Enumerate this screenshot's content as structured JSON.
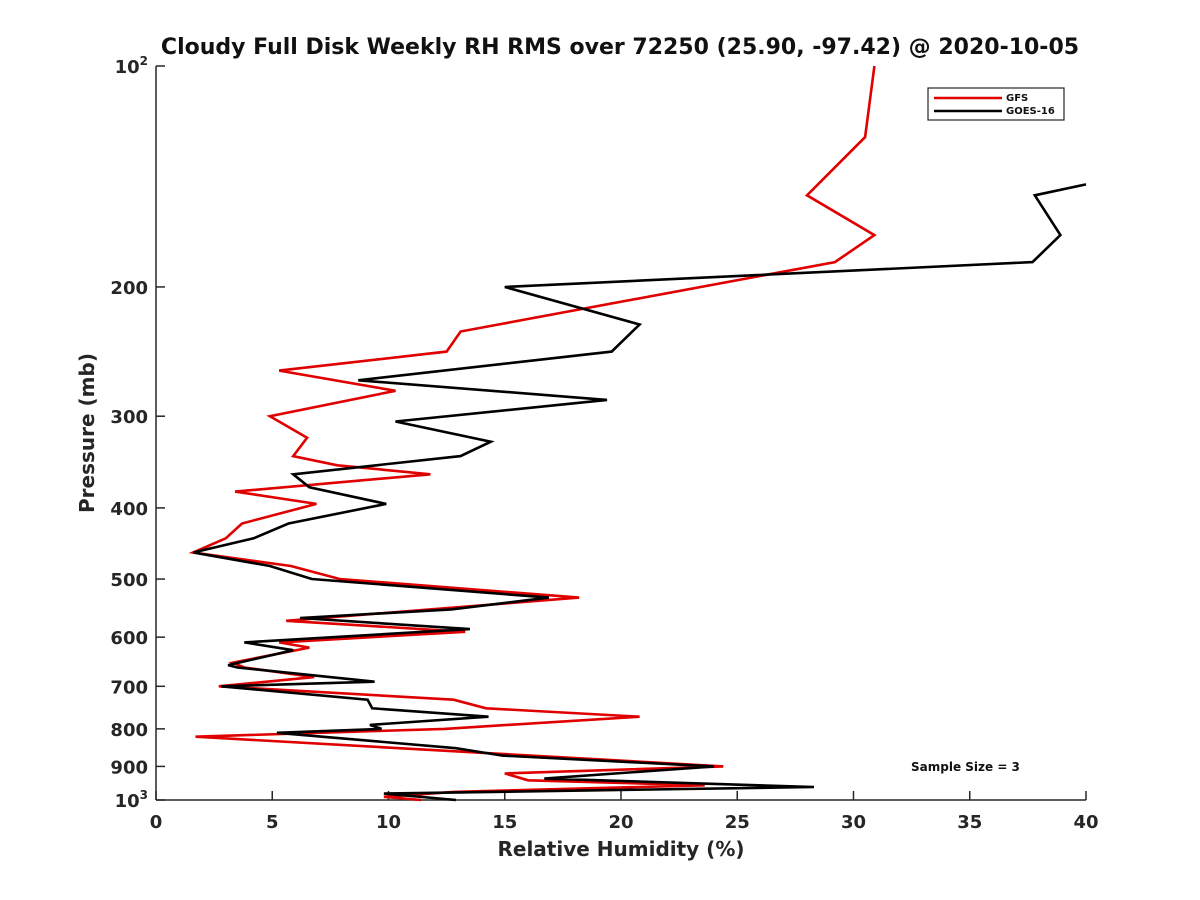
{
  "chart_data": {
    "type": "line",
    "title": "Cloudy Full Disk Weekly RH RMS over 72250 (25.90, -97.42) @ 2020-10-05",
    "xlabel": "Relative Humidity (%)",
    "ylabel": "Pressure (mb)",
    "xlim": [
      0,
      40
    ],
    "ylim": [
      1000,
      100
    ],
    "yscale": "log",
    "y_reversed": true,
    "grid": false,
    "legend_position": "top-right",
    "x_ticks": [
      "0",
      "5",
      "10",
      "15",
      "20",
      "25",
      "30",
      "35",
      "40"
    ],
    "y_ticks": [
      {
        "value": 100,
        "base": "10",
        "exp": "2"
      },
      {
        "value": 200,
        "label": "200"
      },
      {
        "value": 300,
        "label": "300"
      },
      {
        "value": 400,
        "label": "400"
      },
      {
        "value": 500,
        "label": "500"
      },
      {
        "value": 600,
        "label": "600"
      },
      {
        "value": 700,
        "label": "700"
      },
      {
        "value": 800,
        "label": "800"
      },
      {
        "value": 900,
        "label": "900"
      },
      {
        "value": 1000,
        "base": "10",
        "exp": "3"
      }
    ],
    "annotation": "Sample Size = 3",
    "series": [
      {
        "name": "GFS",
        "color": "#e00000",
        "points": [
          [
            30.9,
            100
          ],
          [
            30.5,
            125
          ],
          [
            28.0,
            150
          ],
          [
            30.9,
            170
          ],
          [
            29.2,
            185
          ],
          [
            13.1,
            230
          ],
          [
            12.5,
            245
          ],
          [
            5.3,
            260
          ],
          [
            10.3,
            277
          ],
          [
            4.9,
            300
          ],
          [
            6.5,
            321
          ],
          [
            5.9,
            340
          ],
          [
            7.8,
            350
          ],
          [
            11.8,
            360
          ],
          [
            3.4,
            380
          ],
          [
            6.9,
            395
          ],
          [
            3.7,
            420
          ],
          [
            3.0,
            440
          ],
          [
            1.6,
            460
          ],
          [
            5.8,
            480
          ],
          [
            7.9,
            500
          ],
          [
            18.2,
            530
          ],
          [
            5.6,
            570
          ],
          [
            13.3,
            590
          ],
          [
            5.3,
            610
          ],
          [
            6.6,
            620
          ],
          [
            3.3,
            650
          ],
          [
            3.8,
            660
          ],
          [
            6.8,
            680
          ],
          [
            2.7,
            700
          ],
          [
            12.8,
            730
          ],
          [
            14.2,
            750
          ],
          [
            20.8,
            770
          ],
          [
            12.4,
            800
          ],
          [
            1.7,
            820
          ],
          [
            24.4,
            900
          ],
          [
            15.0,
            920
          ],
          [
            16.0,
            940
          ],
          [
            23.6,
            955
          ],
          [
            12.8,
            975
          ],
          [
            9.8,
            990
          ],
          [
            11.4,
            1000
          ]
        ]
      },
      {
        "name": "GOES-16",
        "color": "#000000",
        "points": [
          [
            40.0,
            145
          ],
          [
            37.8,
            150
          ],
          [
            38.9,
            170
          ],
          [
            37.7,
            185
          ],
          [
            15.0,
            200
          ],
          [
            20.8,
            225
          ],
          [
            19.6,
            245
          ],
          [
            8.7,
            268
          ],
          [
            19.4,
            285
          ],
          [
            10.3,
            305
          ],
          [
            14.4,
            325
          ],
          [
            13.1,
            340
          ],
          [
            5.9,
            360
          ],
          [
            6.6,
            375
          ],
          [
            9.9,
            395
          ],
          [
            5.7,
            420
          ],
          [
            4.2,
            440
          ],
          [
            1.6,
            460
          ],
          [
            4.9,
            480
          ],
          [
            6.7,
            500
          ],
          [
            16.9,
            530
          ],
          [
            12.7,
            550
          ],
          [
            6.2,
            565
          ],
          [
            13.5,
            585
          ],
          [
            3.8,
            610
          ],
          [
            5.9,
            625
          ],
          [
            3.1,
            655
          ],
          [
            3.5,
            660
          ],
          [
            9.4,
            690
          ],
          [
            2.8,
            700
          ],
          [
            9.1,
            730
          ],
          [
            9.3,
            750
          ],
          [
            14.3,
            770
          ],
          [
            9.2,
            790
          ],
          [
            9.7,
            800
          ],
          [
            5.2,
            810
          ],
          [
            12.9,
            850
          ],
          [
            14.9,
            870
          ],
          [
            24.0,
            900
          ],
          [
            16.7,
            935
          ],
          [
            28.3,
            960
          ],
          [
            9.8,
            980
          ],
          [
            12.9,
            1000
          ]
        ]
      }
    ]
  }
}
